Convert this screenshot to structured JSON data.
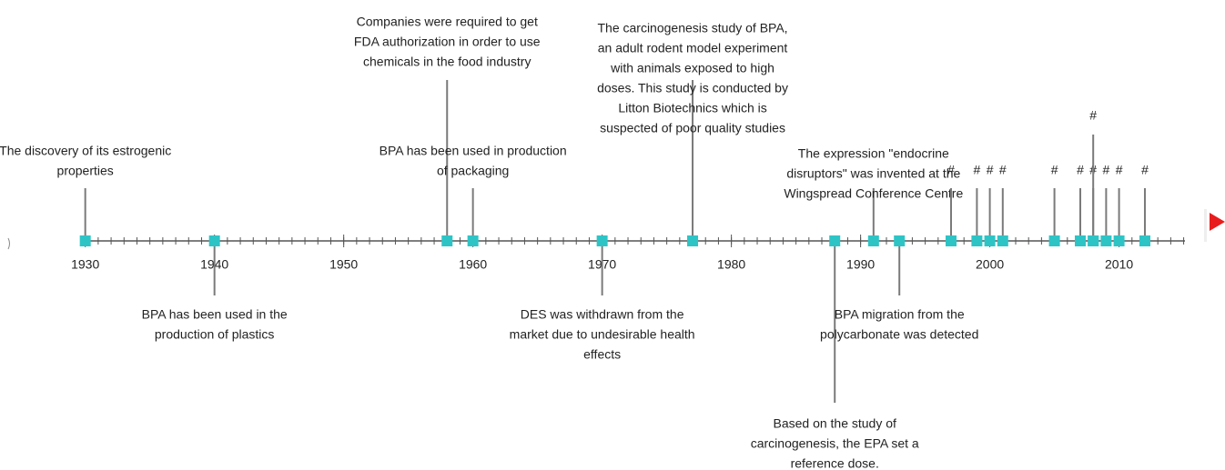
{
  "timeline": {
    "ticks": [
      1930,
      1940,
      1950,
      1960,
      1970,
      1980,
      1990,
      2000,
      2010
    ],
    "xlim": [
      1929.6,
      2015.1
    ],
    "marker_color": "#2ec4c6",
    "events": [
      {
        "year": 1930,
        "lines": [
          "The discovery of its estrogenic",
          "properties"
        ]
      },
      {
        "year": 1940,
        "lines": [
          "BPA has been used in the",
          "production of plastics"
        ]
      },
      {
        "year": 1958,
        "lines": [
          "Companies were required to get",
          "FDA authorization in order to use",
          "chemicals in the food industry"
        ]
      },
      {
        "year": 1960,
        "lines": [
          "BPA has been used in production",
          "of packaging"
        ]
      },
      {
        "year": 1970,
        "lines": [
          "DES was withdrawn from the",
          "market due to undesirable health",
          "effects"
        ]
      },
      {
        "year": 1977,
        "lines": [
          "The carcinogenesis study of BPA,",
          "an adult rodent model experiment",
          "with animals exposed to high",
          "doses. This study is conducted by",
          "Litton Biotechnics which is",
          "suspected of poor quality studies"
        ]
      },
      {
        "year": 1988,
        "lines": [
          "Based on the study of",
          "carcinogenesis, the EPA set a",
          "reference dose."
        ]
      },
      {
        "year": 1991,
        "lines": [
          "The expression \"endocrine",
          "disruptors\" was invented at the",
          "Wingspread Conference Centre"
        ]
      },
      {
        "year": 1993,
        "lines": [
          "BPA migration from the",
          "polycarbonate was detected"
        ]
      },
      {
        "year": 1997,
        "lines": [
          "#"
        ]
      },
      {
        "year": 1999,
        "lines": [
          "#"
        ]
      },
      {
        "year": 2000,
        "lines": [
          "#"
        ]
      },
      {
        "year": 2001,
        "lines": [
          "#"
        ]
      },
      {
        "year": 2005,
        "lines": [
          "#"
        ]
      },
      {
        "year": 2007,
        "lines": [
          "#"
        ]
      },
      {
        "year": 2008,
        "lines": [
          "#"
        ]
      },
      {
        "year": 2008,
        "lines": [
          "#"
        ]
      },
      {
        "year": 2009,
        "lines": [
          "#"
        ]
      },
      {
        "year": 2010,
        "lines": [
          "#"
        ]
      },
      {
        "year": 2012,
        "lines": [
          "#"
        ]
      }
    ]
  }
}
